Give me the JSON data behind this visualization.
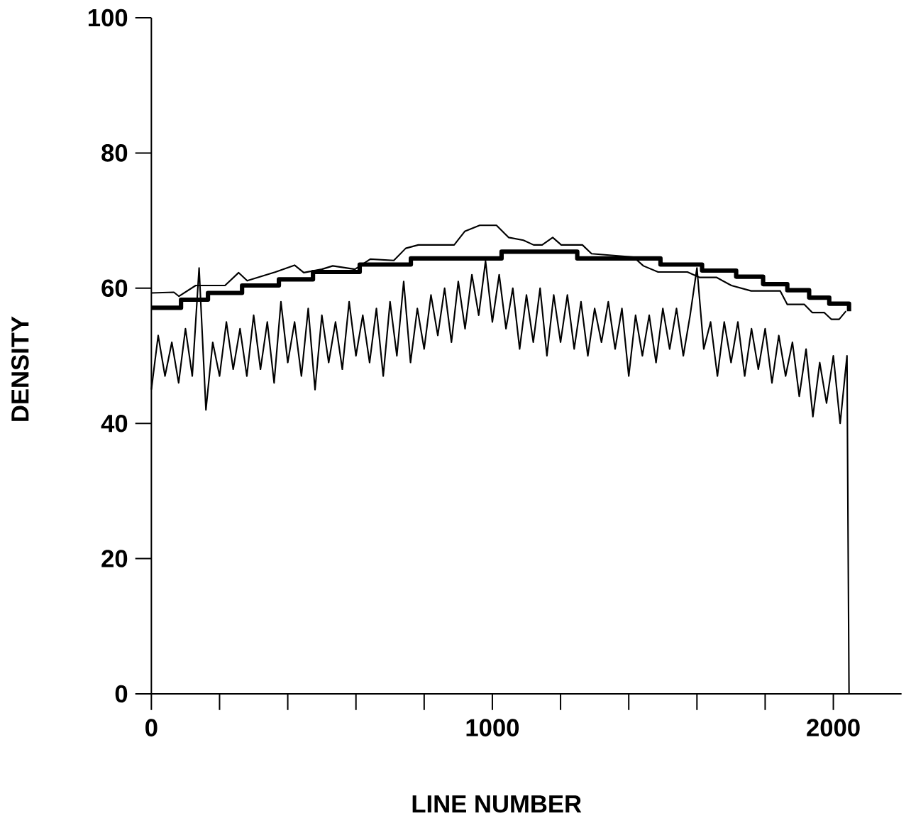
{
  "chart_data": {
    "type": "line",
    "xlabel": "LINE NUMBER",
    "ylabel": "DENSITY",
    "xlim": [
      0,
      2200
    ],
    "ylim": [
      0,
      100
    ],
    "xticks": [
      0,
      1000,
      2000
    ],
    "yticks": [
      0,
      20,
      40,
      60,
      80,
      100
    ],
    "series": [
      {
        "type": "line",
        "color": "#000000",
        "x": [
          0,
          20,
          40,
          60,
          80,
          100,
          120,
          140,
          160,
          180,
          200,
          220,
          240,
          260,
          280,
          300,
          320,
          340,
          360,
          380,
          400,
          420,
          440,
          460,
          480,
          500,
          520,
          540,
          560,
          580,
          600,
          620,
          640,
          660,
          680,
          700,
          720,
          740,
          760,
          780,
          800,
          820,
          840,
          860,
          880,
          900,
          920,
          940,
          960,
          980,
          1000,
          1020,
          1040,
          1060,
          1080,
          1100,
          1120,
          1140,
          1160,
          1180,
          1200,
          1220,
          1240,
          1260,
          1280,
          1300,
          1320,
          1340,
          1360,
          1380,
          1400,
          1420,
          1440,
          1460,
          1480,
          1500,
          1520,
          1540,
          1560,
          1580,
          1600,
          1620,
          1640,
          1660,
          1680,
          1700,
          1720,
          1740,
          1760,
          1780,
          1800,
          1820,
          1840,
          1860,
          1880,
          1900,
          1920,
          1940,
          1960,
          1980,
          2000,
          2020,
          2040,
          2046
        ],
        "values": [
          45,
          53,
          47,
          52,
          46,
          54,
          47,
          63,
          42,
          52,
          47,
          55,
          48,
          54,
          47,
          56,
          48,
          55,
          46,
          58,
          49,
          55,
          47,
          57,
          45,
          56,
          49,
          55,
          48,
          58,
          50,
          56,
          49,
          57,
          47,
          58,
          50,
          61,
          49,
          57,
          51,
          59,
          53,
          60,
          52,
          61,
          54,
          62,
          56,
          64,
          55,
          62,
          54,
          60,
          51,
          59,
          52,
          60,
          50,
          59,
          52,
          59,
          51,
          58,
          50,
          57,
          52,
          58,
          51,
          57,
          47,
          56,
          50,
          56,
          49,
          57,
          51,
          57,
          50,
          56,
          63,
          51,
          55,
          47,
          55,
          49,
          55,
          47,
          54,
          48,
          54,
          46,
          53,
          47,
          52,
          44,
          51,
          41,
          49,
          43,
          50,
          40,
          50,
          0
        ]
      },
      {
        "type": "line",
        "color": "#000000",
        "x": [
          0,
          66,
          81,
          130,
          216,
          256,
          281,
          364,
          420,
          447,
          500,
          532,
          597,
          642,
          711,
          746,
          783,
          888,
          919,
          963,
          1012,
          1048,
          1091,
          1121,
          1146,
          1177,
          1202,
          1264,
          1291,
          1414,
          1443,
          1486,
          1507,
          1572,
          1607,
          1657,
          1701,
          1759,
          1844,
          1865,
          1915,
          1938,
          1973,
          1994,
          2017,
          2037
        ],
        "values": [
          59.3,
          59.4,
          58.8,
          60.4,
          60.4,
          62.3,
          61.1,
          62.4,
          63.4,
          62.3,
          62.8,
          63.3,
          62.8,
          64.3,
          64.1,
          65.9,
          66.4,
          66.4,
          68.4,
          69.3,
          69.3,
          67.5,
          67.1,
          66.4,
          66.4,
          67.5,
          66.4,
          66.4,
          65.1,
          64.6,
          63.3,
          62.4,
          62.4,
          62.4,
          61.6,
          61.6,
          60.4,
          59.6,
          59.6,
          57.6,
          57.6,
          56.4,
          56.4,
          55.4,
          55.4,
          56.6
        ]
      },
      {
        "type": "step",
        "color": "#000000",
        "x": [
          0,
          87,
          166,
          266,
          374,
          474,
          611,
          761,
          1027,
          1249,
          1493,
          1615,
          1715,
          1794,
          1865,
          1929,
          1988,
          2046
        ],
        "values": [
          57.1,
          58.3,
          59.3,
          60.4,
          61.3,
          62.4,
          63.5,
          64.4,
          65.4,
          64.4,
          63.5,
          62.6,
          61.7,
          60.6,
          59.7,
          58.6,
          57.7,
          56.6
        ]
      }
    ]
  }
}
